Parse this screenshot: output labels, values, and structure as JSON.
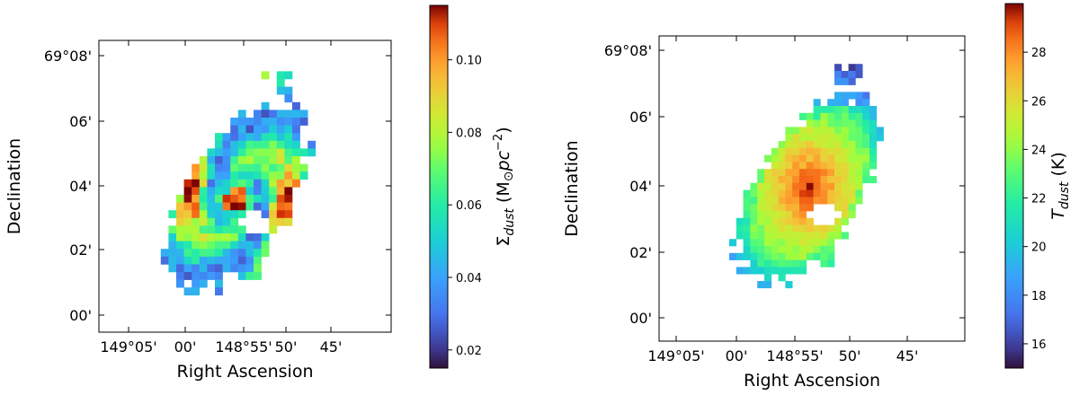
{
  "chart_data": [
    {
      "type": "heatmap",
      "title": "",
      "xlabel": "Right Ascension",
      "ylabel": "Declination",
      "x_tick_labels": [
        "149°05'",
        "00'",
        "148°55'",
        "50'",
        "45'"
      ],
      "y_tick_labels": [
        "69°08'",
        "06'",
        "04'",
        "02'",
        "00'"
      ],
      "colorbar": {
        "label": "Σdust (M⊙pc−2)",
        "label_parts": {
          "symbol": "Σ",
          "sub": "dust",
          "unit_open": " (M",
          "sun": "⊙",
          "pc": "pc",
          "exp": "−2",
          "unit_close": ")"
        },
        "range": [
          0.015,
          0.115
        ],
        "tick_values": [
          0.02,
          0.04,
          0.06,
          0.08,
          0.1
        ],
        "tick_labels": [
          "0.02",
          "0.04",
          "0.06",
          "0.08",
          "0.10"
        ],
        "colormap": "turbo"
      },
      "map": {
        "center_ra": "148°55'",
        "center_dec": "69°03.6'",
        "peak_value": 0.11,
        "structure": "spiral arms with inner ring and bright nucleus"
      }
    },
    {
      "type": "heatmap",
      "title": "",
      "xlabel": "Right Ascension",
      "ylabel": "Declination",
      "x_tick_labels": [
        "149°05'",
        "00'",
        "148°55'",
        "50'",
        "45'"
      ],
      "y_tick_labels": [
        "69°08'",
        "06'",
        "04'",
        "02'",
        "00'"
      ],
      "colorbar": {
        "label": "Tdust (K)",
        "label_parts": {
          "symbol": "T",
          "sub": "dust",
          "unit": " (K)"
        },
        "range": [
          15,
          30
        ],
        "tick_values": [
          16,
          18,
          20,
          22,
          24,
          26,
          28
        ],
        "tick_labels": [
          "16",
          "18",
          "20",
          "22",
          "24",
          "26",
          "28"
        ],
        "colormap": "turbo"
      },
      "map": {
        "center_ra": "148°55'",
        "center_dec": "69°03.8'",
        "peak_value": 29.5,
        "structure": "smooth radial decline from warm nucleus"
      }
    }
  ]
}
